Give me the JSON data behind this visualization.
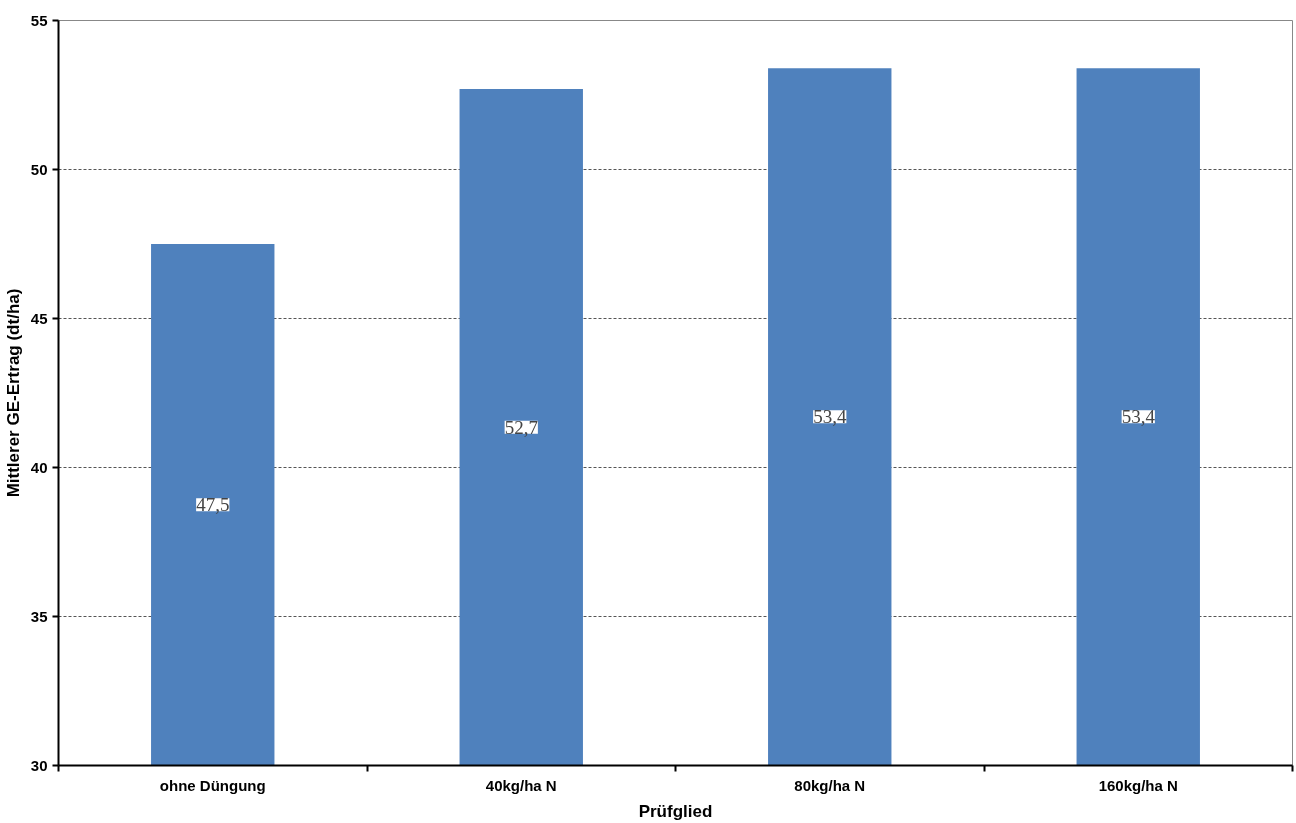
{
  "chart_data": {
    "type": "bar",
    "xlabel": "Prüfglied",
    "ylabel": "Mittlerer GE-Ertrag (dt/ha)",
    "categories": [
      "ohne Düngung",
      "40kg/ha N",
      "80kg/ha N",
      "160kg/ha N"
    ],
    "values": [
      47.5,
      52.7,
      53.4,
      53.4
    ],
    "value_labels": [
      "47,5",
      "52,7",
      "53,4",
      "53,4"
    ],
    "color": "#4f81bd",
    "ylim": [
      30,
      55
    ],
    "yticks": [
      30,
      35,
      40,
      45,
      50,
      55
    ],
    "grid": "y"
  }
}
